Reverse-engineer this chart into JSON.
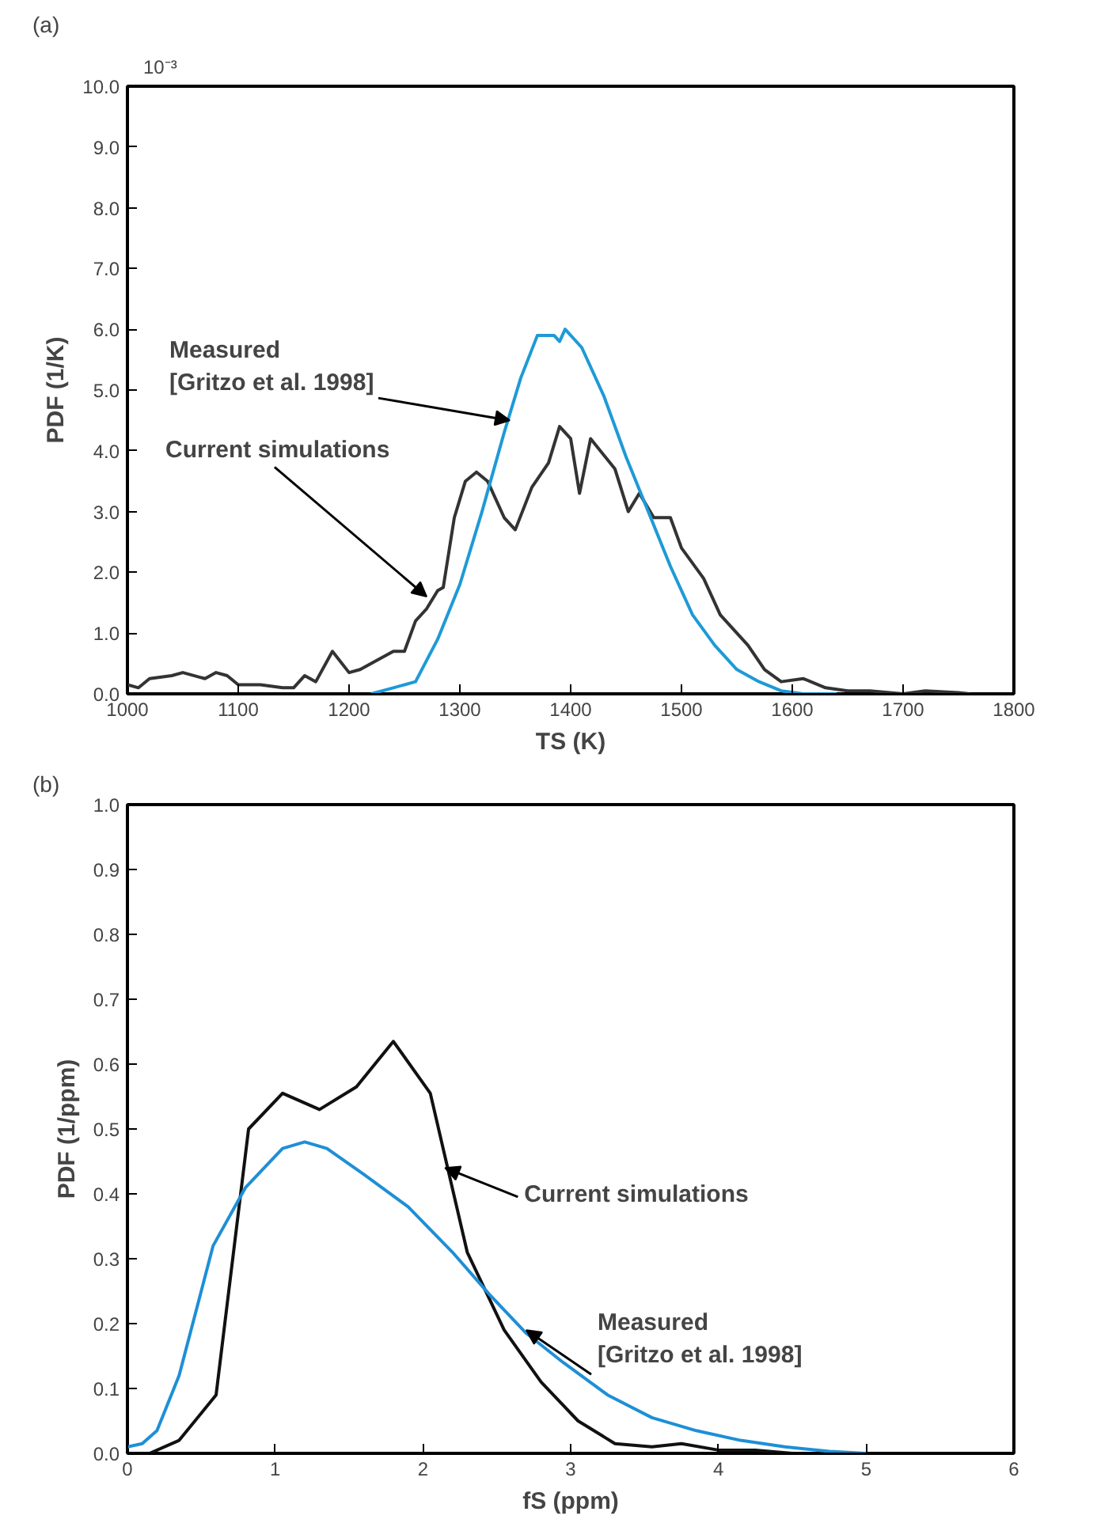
{
  "chart_data": [
    {
      "type": "line",
      "title": "(a)",
      "xlabel": "TS (K)",
      "ylabel": "PDF (1/K)",
      "xlim": [
        1000,
        1800
      ],
      "ylim": [
        0,
        10
      ],
      "xticks": [
        1000,
        1100,
        1200,
        1300,
        1400,
        1500,
        1600,
        1700,
        1800
      ],
      "yticks": [
        {
          "value": 0,
          "label": "0.0"
        },
        {
          "value": 1,
          "label": "1.0"
        },
        {
          "value": 2,
          "label": "2.0"
        },
        {
          "value": 3,
          "label": "3.0"
        },
        {
          "value": 4,
          "label": "4.0"
        },
        {
          "value": 5,
          "label": "5.0"
        },
        {
          "value": 6,
          "label": "6.0"
        },
        {
          "value": 7,
          "label": "7.0"
        },
        {
          "value": 8,
          "label": "8.0"
        },
        {
          "value": 9,
          "label": "9.0"
        },
        {
          "value": 10,
          "label": "10.0"
        }
      ],
      "grid": false,
      "series": [
        {
          "color": "#333333",
          "x": [
            1000,
            1010,
            1020,
            1040,
            1050,
            1070,
            1080,
            1090,
            1100,
            1120,
            1140,
            1150,
            1160,
            1170,
            1185,
            1200,
            1210,
            1225,
            1240,
            1250,
            1260,
            1270,
            1280,
            1285,
            1295,
            1305,
            1315,
            1325,
            1340,
            1350,
            1365,
            1380,
            1390,
            1400,
            1408,
            1418,
            1440,
            1452,
            1462,
            1475,
            1490,
            1500,
            1520,
            1535,
            1560,
            1575,
            1590,
            1610,
            1630,
            1650,
            1670,
            1700,
            1720,
            1750,
            1760
          ],
          "values": [
            0.15,
            0.1,
            0.25,
            0.3,
            0.35,
            0.25,
            0.35,
            0.3,
            0.15,
            0.15,
            0.1,
            0.1,
            0.3,
            0.2,
            0.7,
            0.35,
            0.4,
            0.55,
            0.7,
            0.7,
            1.2,
            1.4,
            1.7,
            1.75,
            2.9,
            3.5,
            3.65,
            3.5,
            2.9,
            2.7,
            3.4,
            3.8,
            4.4,
            4.2,
            3.3,
            4.2,
            3.7,
            3.0,
            3.3,
            2.9,
            2.9,
            2.4,
            1.9,
            1.3,
            0.8,
            0.4,
            0.2,
            0.25,
            0.1,
            0.05,
            0.05,
            0.0,
            0.05,
            0.02,
            0.0
          ]
        },
        {
          "color": "#1e9ad6",
          "x": [
            1220,
            1240,
            1260,
            1280,
            1300,
            1320,
            1340,
            1355,
            1370,
            1385,
            1390,
            1395,
            1410,
            1430,
            1450,
            1470,
            1490,
            1510,
            1530,
            1550,
            1570,
            1590,
            1610,
            1640
          ],
          "values": [
            0,
            0.1,
            0.2,
            0.9,
            1.8,
            3.0,
            4.3,
            5.2,
            5.9,
            5.9,
            5.8,
            6.0,
            5.7,
            4.9,
            3.9,
            3.0,
            2.1,
            1.3,
            0.8,
            0.4,
            0.2,
            0.05,
            0,
            0
          ]
        }
      ],
      "annotations": [
        "10⁻³",
        {
          "text": "Measured\n[Gritzo et al. 1998]",
          "x": 1345,
          "y": 4.5
        },
        {
          "text": "Current simulations",
          "x": 1270,
          "y": 1.6
        }
      ]
    },
    {
      "type": "line",
      "title": "(b)",
      "xlabel": "fS (ppm)",
      "ylabel": "PDF (1/ppm)",
      "xlim": [
        0,
        6
      ],
      "ylim": [
        0,
        1
      ],
      "xticks": [
        0,
        1,
        2,
        3,
        4,
        5,
        6
      ],
      "yticks": [
        {
          "value": 0,
          "label": "0.0"
        },
        {
          "value": 0.1,
          "label": "0.1"
        },
        {
          "value": 0.2,
          "label": "0.2"
        },
        {
          "value": 0.3,
          "label": "0.3"
        },
        {
          "value": 0.4,
          "label": "0.4"
        },
        {
          "value": 0.5,
          "label": "0.5"
        },
        {
          "value": 0.6,
          "label": "0.6"
        },
        {
          "value": 0.7,
          "label": "0.7"
        },
        {
          "value": 0.8,
          "label": "0.8"
        },
        {
          "value": 0.9,
          "label": "0.9"
        },
        {
          "value": 1,
          "label": "1.0"
        }
      ],
      "grid": false,
      "series": [
        {
          "color": "#111111",
          "x": [
            0.15,
            0.35,
            0.6,
            0.82,
            1.05,
            1.3,
            1.55,
            1.8,
            2.05,
            2.3,
            2.55,
            2.8,
            3.05,
            3.3,
            3.55,
            3.75,
            4.0,
            4.25,
            4.5
          ],
          "values": [
            0,
            0.02,
            0.09,
            0.5,
            0.555,
            0.53,
            0.565,
            0.635,
            0.555,
            0.31,
            0.19,
            0.11,
            0.05,
            0.015,
            0.01,
            0.015,
            0.005,
            0.005,
            0
          ]
        },
        {
          "color": "#1e8fd6",
          "x": [
            0,
            0.1,
            0.2,
            0.35,
            0.58,
            0.8,
            1.05,
            1.2,
            1.35,
            1.6,
            1.9,
            2.2,
            2.45,
            2.7,
            2.95,
            3.25,
            3.55,
            3.85,
            4.15,
            4.45,
            4.75,
            5.0
          ],
          "values": [
            0.01,
            0.015,
            0.035,
            0.12,
            0.32,
            0.41,
            0.47,
            0.48,
            0.47,
            0.43,
            0.38,
            0.31,
            0.245,
            0.185,
            0.14,
            0.09,
            0.055,
            0.035,
            0.02,
            0.01,
            0.003,
            0
          ]
        }
      ],
      "annotations": [
        {
          "text": "Current simulations",
          "x": 2.15,
          "y": 0.44
        },
        {
          "text": "Measured\n[Gritzo et al. 1998]",
          "x": 2.7,
          "y": 0.19
        }
      ]
    }
  ]
}
